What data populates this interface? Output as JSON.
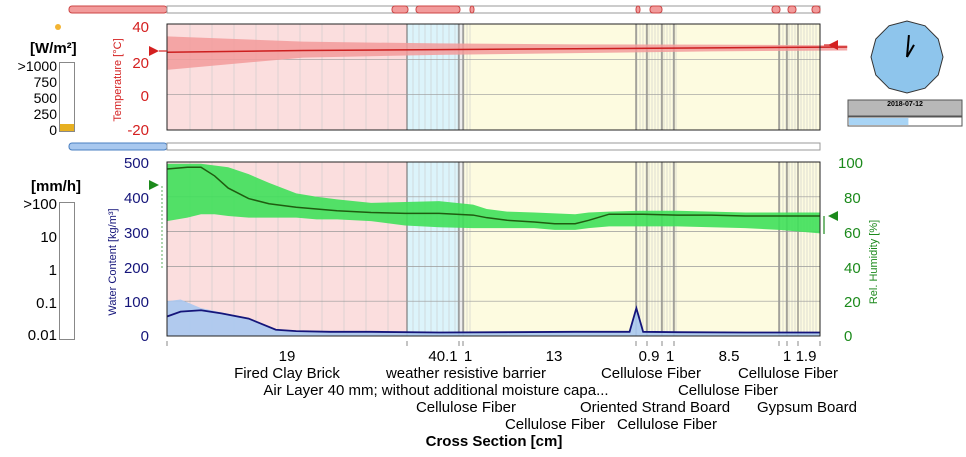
{
  "chart_data": [
    {
      "type": "line",
      "name": "temperature_panel",
      "ylabel": "Temperature [°C]",
      "unit_glyph": "°C",
      "ylim": [
        -20,
        40
      ],
      "yticks": [
        40,
        20,
        0,
        -20
      ],
      "series": [
        {
          "name": "temperature",
          "x_cm": [
            0,
            20,
            40,
            60,
            80,
            100
          ],
          "values": [
            24,
            25,
            25.5,
            26,
            26.5,
            27
          ],
          "band_low": [
            14,
            21,
            22.5,
            23.5,
            24.5,
            25
          ],
          "band_high": [
            33,
            30,
            29,
            28.5,
            28.3,
            28
          ]
        }
      ],
      "colors": {
        "line": "#cc1f1f",
        "band": "#f29b9b",
        "axis": "#d42020"
      }
    },
    {
      "type": "line",
      "name": "moisture_panel",
      "ylabel_left": "Water Content [kg/m³]",
      "ylabel_right": "Rel. Humidity [%]",
      "ylim_left": [
        0,
        500
      ],
      "ylim_right": [
        0,
        100
      ],
      "yticks_left": [
        500,
        400,
        300,
        200,
        100,
        0
      ],
      "yticks_right": [
        100,
        80,
        60,
        40,
        20,
        0
      ],
      "series": [
        {
          "name": "relative_humidity",
          "axis": "right",
          "x_cm": [
            0,
            3,
            5,
            7,
            9,
            12,
            15,
            19,
            22,
            25,
            30,
            35,
            40,
            45,
            47,
            50,
            54,
            57,
            60,
            62,
            65,
            70,
            75,
            80,
            85,
            90,
            96
          ],
          "values": [
            96,
            97,
            97,
            92,
            85,
            79,
            76,
            74,
            73,
            72,
            71,
            70.5,
            70.5,
            69.5,
            68,
            66.5,
            65.5,
            64.5,
            64.5,
            66.5,
            70,
            70,
            69.5,
            69.5,
            69,
            69,
            69
          ],
          "band_low": [
            66,
            68,
            70,
            70,
            69,
            68,
            68,
            68,
            67,
            67,
            66,
            63.5,
            62.5,
            62,
            62,
            62,
            62,
            61,
            61,
            62,
            63,
            63,
            63,
            62.5,
            62,
            61,
            59
          ],
          "band_high": [
            99,
            99,
            99,
            98,
            97,
            93,
            88,
            82,
            80,
            78.5,
            76.5,
            77,
            77.5,
            75.5,
            73,
            71.5,
            71,
            70.5,
            70,
            71,
            71.5,
            72,
            72,
            71.5,
            71,
            71,
            71
          ]
        },
        {
          "name": "water_content",
          "axis": "left",
          "x_cm": [
            0,
            2,
            5,
            8,
            12,
            16,
            19,
            24,
            30,
            40,
            50,
            60,
            68,
            69,
            70,
            75,
            85,
            96
          ],
          "values": [
            56,
            70,
            74,
            65,
            50,
            18,
            14,
            12,
            12,
            10,
            11,
            12,
            12,
            80,
            12,
            11,
            10,
            10
          ],
          "band_high": [
            100,
            105,
            80,
            68,
            52,
            20,
            15,
            13,
            12,
            11,
            12,
            13,
            13,
            88,
            13,
            12,
            11,
            11
          ]
        }
      ],
      "colors": {
        "rh_line": "#1f5c10",
        "rh_band": "#3fe05a",
        "wc_line": "#15157a",
        "wc_band": "#a8c8ef",
        "left_axis": "#15157a",
        "right_axis": "#1c8a1c"
      }
    }
  ],
  "layers": [
    {
      "name": "Fired Clay Brick",
      "thickness_label": "19",
      "color": "#fbdede"
    },
    {
      "name": "Air Layer 40 mm; without additional moisture capa...",
      "thickness_label": "40.1",
      "color": "#dcf4fb"
    },
    {
      "name": "weather resistive barrier",
      "thickness_label": "",
      "color": "#ffffff"
    },
    {
      "name": "Cellulose Fiber",
      "thickness_label": "1",
      "color": "#fdfbe0"
    },
    {
      "name": "Cellulose Fiber",
      "thickness_label": "13",
      "color": "#fdfbe0"
    },
    {
      "name": "Oriented Strand Board",
      "thickness_label": "0.9",
      "color": "#fdfbe0"
    },
    {
      "name": "Cellulose Fiber",
      "thickness_label": "1",
      "color": "#fdfbe0"
    },
    {
      "name": "Cellulose Fiber",
      "thickness_label": "8.5",
      "color": "#fdfbe0"
    },
    {
      "name": "Gypsum Board",
      "thickness_label": "1",
      "color": "#fdfbe0"
    },
    {
      "name": "Cellulose Fiber",
      "thickness_label": "1.9",
      "color": "#fdfbe0"
    }
  ],
  "thickness_labels": [
    "19",
    "40.1",
    "1",
    "13",
    "0.9",
    "1",
    "8.5",
    "1",
    "1.9"
  ],
  "material_labels": {
    "row1": [
      "Fired Clay Brick",
      "weather resistive barrier",
      "Cellulose Fiber",
      "Cellulose Fiber"
    ],
    "row2": [
      "Air Layer 40 mm; without additional moisture capa...",
      "Cellulose Fiber"
    ],
    "row3": [
      "Cellulose Fiber",
      "Oriented Strand Board",
      "Gypsum Board"
    ],
    "row4": [
      "Cellulose Fiber",
      "Cellulose Fiber"
    ]
  },
  "x_axis_title": "Cross Section [cm]",
  "radiation_scale": {
    "title": "[W/m²]",
    "ticks": [
      ">1000",
      "750",
      "500",
      "250",
      "0"
    ],
    "fill_fraction": 0.04
  },
  "rain_scale": {
    "title": "[mm/h]",
    "ticks": [
      ">100",
      "10",
      "1",
      "0.1",
      "0.01"
    ]
  },
  "clock": {
    "date": "2018-07-12",
    "hour_hand_angle_deg": 5,
    "minute_hand_angle_deg": 30,
    "progress_fraction": 0.53
  },
  "labels": {
    "temp_axis_unit": "°C",
    "temp_axis": "Temperature [°C]",
    "wc_axis": "Water Content [kg/m³]",
    "rh_axis": "Rel. Humidity [%]"
  }
}
